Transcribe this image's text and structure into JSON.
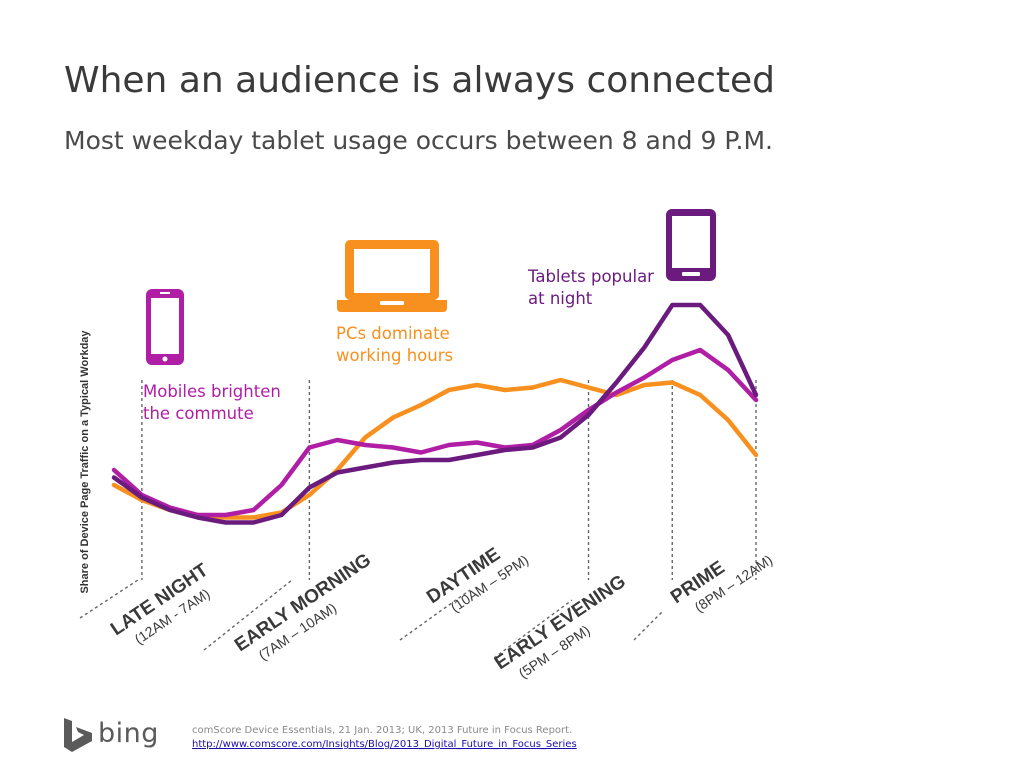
{
  "header": {
    "title": "When an audience is always connected",
    "subtitle": "Most weekday tablet usage occurs between 8 and 9 P.M."
  },
  "chart_data": {
    "type": "line",
    "ylabel": "Share of Device Page Traffic on a Typical Workday",
    "ylim": [
      0,
      100
    ],
    "x": [
      0,
      1,
      2,
      3,
      4,
      5,
      6,
      7,
      8,
      9,
      10,
      11,
      12,
      13,
      14,
      15,
      16,
      17,
      18,
      19,
      20,
      21,
      22,
      23
    ],
    "series": [
      {
        "name": "Tablets",
        "color": "#6b1a7e",
        "values": [
          27,
          19,
          14,
          11,
          9,
          9,
          12,
          23,
          29,
          31,
          33,
          34,
          34,
          36,
          38,
          39,
          43,
          52,
          65,
          79,
          96,
          96,
          84,
          60
        ]
      },
      {
        "name": "Mobiles",
        "color": "#b01ea6",
        "values": [
          30,
          20,
          15,
          12,
          12,
          14,
          24,
          39,
          42,
          40,
          39,
          37,
          40,
          41,
          39,
          40,
          46,
          54,
          61,
          67,
          74,
          78,
          70,
          58
        ]
      },
      {
        "name": "PCs",
        "color": "#f7901e",
        "values": [
          24,
          18,
          14,
          12,
          11,
          11,
          13,
          20,
          30,
          43,
          51,
          56,
          62,
          64,
          62,
          63,
          66,
          63,
          60,
          64,
          65,
          60,
          50,
          36
        ]
      }
    ],
    "periods": [
      {
        "name": "LATE NIGHT",
        "range": "(12AM - 7AM)"
      },
      {
        "name": "EARLY MORNING",
        "range": "(7AM – 10AM)"
      },
      {
        "name": "DAYTIME",
        "range": "(10AM – 5PM)"
      },
      {
        "name": "EARLY EVENING",
        "range": "(5PM – 8PM)"
      },
      {
        "name": "PRIME",
        "range": "(8PM – 12AM)"
      }
    ],
    "annotations": [
      {
        "device": "mobile-icon",
        "color": "#b01ea6",
        "lines": [
          "Mobiles brighten",
          "the commute"
        ]
      },
      {
        "device": "laptop-icon",
        "color": "#f7901e",
        "lines": [
          "PCs dominate",
          "working hours"
        ]
      },
      {
        "device": "tablet-icon",
        "color": "#6b1a7e",
        "lines": [
          "Tablets popular",
          "at night"
        ]
      }
    ]
  },
  "footer": {
    "logo_text": "bing",
    "source_text": "comScore Device Essentials, 21 Jan. 2013; UK, 2013 Future in Focus Report.",
    "source_link": "http://www.comscore.com/Insights/Blog/2013_Digital_Future_in_Focus_Series"
  }
}
